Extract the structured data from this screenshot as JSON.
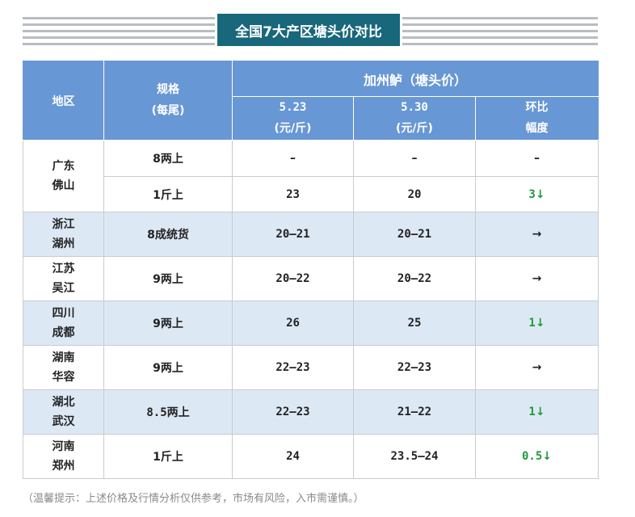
{
  "title": "全国7大产区塘头价对比",
  "header": {
    "region": "地区",
    "spec_line1": "规格",
    "spec_line2": "(每尾)",
    "product": "加州鲈（塘头价）",
    "col1_line1": "5.23",
    "col1_line2": "(元/斤)",
    "col2_line1": "5.30",
    "col2_line2": "(元/斤)",
    "col3_line1": "环比",
    "col3_line2": "幅度"
  },
  "rows": [
    {
      "region1": "广东",
      "region2": "佛山",
      "sub": [
        {
          "spec": "8两上",
          "p1": "–",
          "p2": "–",
          "chg": "–",
          "icon": "none"
        },
        {
          "spec": "1斤上",
          "p1": "23",
          "p2": "20",
          "chg": "3",
          "icon": "arrow-down"
        }
      ]
    },
    {
      "region1": "浙江",
      "region2": "湖州",
      "spec": "8成统货",
      "p1": "20–21",
      "p2": "20–21",
      "chg": "",
      "icon": "arrow-right"
    },
    {
      "region1": "江苏",
      "region2": "吴江",
      "spec": "9两上",
      "p1": "20–22",
      "p2": "20–22",
      "chg": "",
      "icon": "arrow-right"
    },
    {
      "region1": "四川",
      "region2": "成都",
      "spec": "9两上",
      "p1": "26",
      "p2": "25",
      "chg": "1",
      "icon": "arrow-down"
    },
    {
      "region1": "湖南",
      "region2": "华容",
      "spec": "9两上",
      "p1": "22–23",
      "p2": "22–23",
      "chg": "",
      "icon": "arrow-right"
    },
    {
      "region1": "湖北",
      "region2": "武汉",
      "spec": "8.5两上",
      "p1": "22–23",
      "p2": "21–22",
      "chg": "1",
      "icon": "arrow-down"
    },
    {
      "region1": "河南",
      "region2": "郑州",
      "spec": "1斤上",
      "p1": "24",
      "p2": "23.5–24",
      "chg": "0.5",
      "icon": "arrow-down"
    }
  ],
  "arrows": {
    "down": "↓",
    "right": "→"
  },
  "colors": {
    "title_bg": "#18677b",
    "header_bg": "#6897d6",
    "shade": "#dde8f5",
    "green": "#1f9a3a"
  },
  "footnote": "（温馨提示：上述价格及行情分析仅供参考，市场有风险，入市需谨慎。）"
}
